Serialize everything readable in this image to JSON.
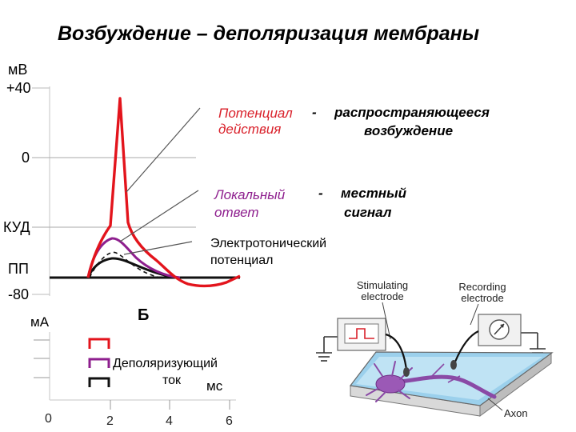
{
  "title": "Возбуждение – деполяризация мембраны",
  "voltage_axis": {
    "unit": "мВ",
    "labels": {
      "plus40": "+40",
      "zero": "0",
      "kud": "КУД",
      "pp": "ПП",
      "minus80": "-80"
    }
  },
  "current_axis": {
    "unit": "мА",
    "time_unit": "мс",
    "ticks": [
      "0",
      "2",
      "4",
      "6"
    ]
  },
  "panel_letter": "Б",
  "annotations": {
    "action_potential": {
      "term_line1": "Потенциал",
      "term_line2": "действия",
      "dash": "-",
      "desc_line1": "распространяющееся",
      "desc_line2": "возбуждение"
    },
    "local_response": {
      "term_line1": "Локальный",
      "term_line2": "ответ",
      "dash": "-",
      "desc_line1": "местный",
      "desc_line2": "сигнал"
    },
    "electrotonic": {
      "line1": "Электротонический",
      "line2": "потенциал"
    },
    "depolarizing_current": {
      "line1": "Деполяризующий",
      "line2": "ток"
    }
  },
  "setup_labels": {
    "stimulating_line1": "Stimulating",
    "stimulating_line2": "electrode",
    "recording_line1": "Recording",
    "recording_line2": "electrode",
    "axon": "Axon"
  },
  "colors": {
    "action_potential": "#e3141c",
    "local_response": "#8e1f8e",
    "electrotonic": "#111111",
    "dish": "#8ec9e8",
    "neuron": "#8a4aa6"
  }
}
